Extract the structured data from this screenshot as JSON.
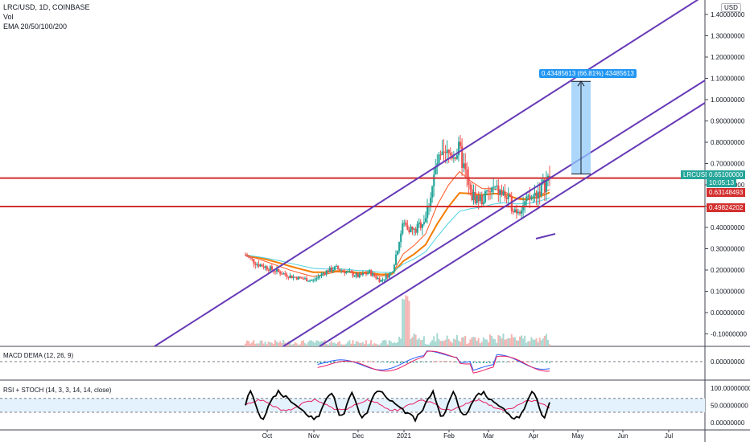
{
  "header": {
    "symbol_line": "LRC/USD, 1D, COINBASE",
    "vol_label": "Vol",
    "ema_label": "EMA 20/50/100/200"
  },
  "currency_badge": "USD",
  "panels": {
    "macd_label": "MACD DEMA (12, 26, 9)",
    "rsi_label": "RSI + STOCH (14, 3, 3, 14, 14, close)"
  },
  "badges": {
    "symbol": "LRCUSD",
    "price": "0.65100000",
    "countdown": "10:05:13",
    "level_upper": "0.63148493",
    "level_lower": "0.49824202",
    "measure": "0.43485613 (66.81%) 43485613"
  },
  "colors": {
    "up": "#26a69a",
    "down": "#ef5350",
    "channel": "#673ab7",
    "support": "#d32f2f",
    "measure_fill": "#90caf9",
    "measure_label": "#2196f3",
    "badge_teal": "#26a69a",
    "badge_red": "#d32f2f",
    "ema_short": "#ff5722",
    "ema_mid": "#f57c00",
    "ema_long": "#4dd0e1",
    "macd_line": "#2962ff",
    "macd_signal": "#e91e63",
    "rsi_line": "#000000",
    "stoch_line": "#e91e63"
  },
  "chart_data": [
    {
      "type": "candlestick",
      "x_ticks": [
        "Oct",
        "Nov",
        "Dec",
        "2021",
        "Feb",
        "Mar",
        "Apr",
        "May",
        "Jun",
        "Jul"
      ],
      "y_ticks": [
        "1.40000000",
        "1.30000000",
        "1.20000000",
        "1.10000000",
        "1.00000000",
        "0.90000000",
        "0.80000000",
        "0.70000000",
        "0.60000000",
        "0.50000000",
        "0.40000000",
        "0.30000000",
        "0.20000000",
        "0.10000000",
        "0.00000000",
        "-0.10000000"
      ],
      "ylim": [
        -0.16,
        1.47
      ],
      "close_path": [
        {
          "t": 0,
          "v": 0.27
        },
        {
          "t": 1,
          "v": 0.23
        },
        {
          "t": 2,
          "v": 0.21
        },
        {
          "t": 3,
          "v": 0.19
        },
        {
          "t": 4,
          "v": 0.17
        },
        {
          "t": 5,
          "v": 0.16
        },
        {
          "t": 6,
          "v": 0.15
        },
        {
          "t": 7,
          "v": 0.19
        },
        {
          "t": 8,
          "v": 0.21
        },
        {
          "t": 9,
          "v": 0.19
        },
        {
          "t": 10,
          "v": 0.17
        },
        {
          "t": 11,
          "v": 0.19
        },
        {
          "t": 12,
          "v": 0.15
        },
        {
          "t": 13,
          "v": 0.19
        },
        {
          "t": 14,
          "v": 0.42
        },
        {
          "t": 15,
          "v": 0.38
        },
        {
          "t": 16,
          "v": 0.45
        },
        {
          "t": 17,
          "v": 0.7
        },
        {
          "t": 18,
          "v": 0.74
        },
        {
          "t": 19,
          "v": 0.76
        },
        {
          "t": 20,
          "v": 0.55
        },
        {
          "t": 21,
          "v": 0.53
        },
        {
          "t": 22,
          "v": 0.58
        },
        {
          "t": 23,
          "v": 0.55
        },
        {
          "t": 24,
          "v": 0.48
        },
        {
          "t": 25,
          "v": 0.52
        },
        {
          "t": 26,
          "v": 0.57
        },
        {
          "t": 27,
          "v": 0.63
        }
      ],
      "horizontal_levels": [
        0.63148493,
        0.49824202
      ],
      "last_price": 0.651,
      "measure_range": [
        0.651,
        1.086
      ]
    },
    {
      "type": "line",
      "name": "MACD DEMA (12, 26, 9)",
      "y_ticks": [
        "0.00000000"
      ]
    },
    {
      "type": "line",
      "name": "RSI + STOCH (14, 3, 3, 14, 14, close)",
      "y_ticks": [
        "100.00000000",
        "50.00000000",
        "0.00000000"
      ]
    }
  ]
}
